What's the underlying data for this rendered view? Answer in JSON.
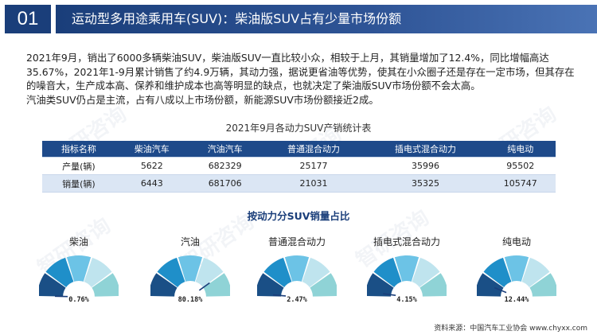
{
  "header": {
    "number": "01",
    "title": "运动型多用途乘用车(SUV)：柴油版SUV占有少量市场份额"
  },
  "paragraph": {
    "p1": "2021年9月，销出了6000多辆柴油SUV，柴油版SUV一直比较小众，相较于上月，其销量增加了12.4%，同比增幅高达35.67%，2021年1-9月累计销售了约4.9万辆，其动力强，据说更省油等优势，使其在小众圈子还是存在一定市场，但其存在的噪音大，生产成本高、保养和维护成本也高等明显的缺点，也就决定了柴油版SUV市场份额不会太高。",
    "p2": "汽油类SUV仍占是主流，占有八成以上市场份额，新能源SUV市场份额接近2成。"
  },
  "table": {
    "title": "2021年9月各动力SUV产销统计表",
    "headers": [
      "指标名称",
      "柴油汽车",
      "汽油汽车",
      "普通混合动力",
      "插电式混合动力",
      "纯电动"
    ],
    "rows": [
      [
        "产量(辆)",
        "5622",
        "682329",
        "25177",
        "35996",
        "95502"
      ],
      [
        "销量(辆)",
        "6443",
        "681706",
        "21031",
        "35325",
        "105747"
      ]
    ]
  },
  "chart_section": {
    "title": "按动力分SUV销量占比"
  },
  "chart_data": {
    "type": "gauge",
    "title": "按动力分SUV销量占比",
    "categories": [
      "柴油",
      "汽油",
      "普通混合动力",
      "插电式混合动力",
      "纯电动"
    ],
    "values": [
      0.76,
      80.18,
      2.47,
      4.15,
      12.44
    ],
    "value_labels": [
      "0.76%",
      "80.18%",
      "2.47%",
      "4.15%",
      "12.44%"
    ],
    "range": [
      0,
      100
    ],
    "band_colors": [
      "#1a4f86",
      "#1f8fc9",
      "#6cc3e6",
      "#bfe4ee",
      "#8fd3d6"
    ]
  },
  "source": "资料来源：中国汽车工业协会 www.chyxx.com",
  "watermark": "智研咨询"
}
